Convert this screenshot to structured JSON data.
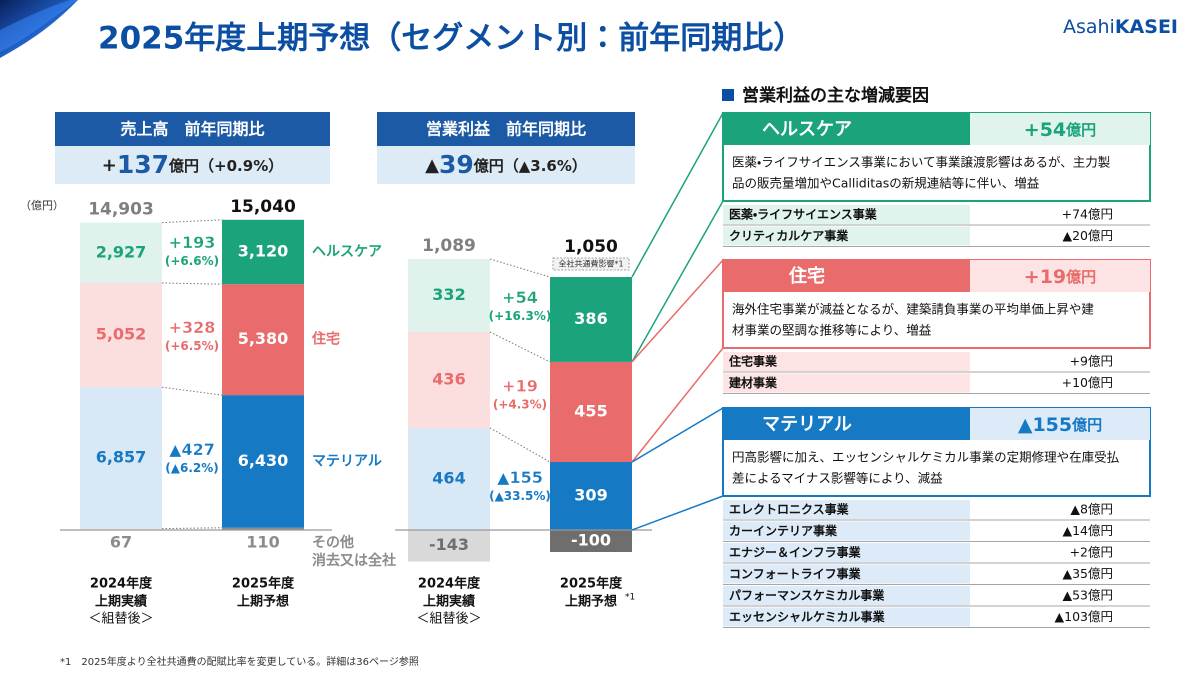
{
  "header": {
    "title": "2025年度上期予想（セグメント別：前年同期比）",
    "logo": {
      "a": "Asahi",
      "b": "KASEI"
    }
  },
  "chart_data": [
    {
      "type": "stacked_bar",
      "title": "売上高　前年同期比",
      "summary": {
        "sign": "+",
        "amount": "137",
        "rest": "億円（+0.9%）"
      },
      "unit": "（億円）",
      "categories": [
        "2024年度",
        "2025年度"
      ],
      "category_notes": [
        [
          "上期実績",
          "＜組替後＞"
        ],
        [
          "上期予想"
        ]
      ],
      "ylim": [
        -1500,
        16000
      ],
      "total_labels": [
        "14,903",
        "15,040"
      ],
      "series": [
        {
          "name": "その他",
          "name_note": "消去又は全社",
          "color": "#8c8c8c",
          "light_color": "#e6e6e6",
          "values": [
            67,
            110
          ],
          "value_labels": [
            "67",
            "110"
          ]
        },
        {
          "name": "マテリアル",
          "color": "#1679c4",
          "light_color": "#d8e8f5",
          "values": [
            6857,
            6430
          ],
          "value_labels": [
            "6,857",
            "6,430"
          ],
          "change": "▲427",
          "change_pct": "(▲6.2%)"
        },
        {
          "name": "住宅",
          "color": "#e96b6b",
          "light_color": "#fbdede",
          "values": [
            5052,
            5380
          ],
          "value_labels": [
            "5,052",
            "5,380"
          ],
          "change": "+328",
          "change_pct": "(+6.5%)"
        },
        {
          "name": "ヘルスケア",
          "color": "#1ba37b",
          "light_color": "#dff2eb",
          "values": [
            2927,
            3120
          ],
          "value_labels": [
            "2,927",
            "3,120"
          ],
          "change": "+193",
          "change_pct": "(+6.6%)"
        }
      ]
    },
    {
      "type": "stacked_bar",
      "title": "営業利益　前年同期比",
      "summary": {
        "sign": "▲",
        "amount": "39",
        "rest": "億円（▲3.6%）"
      },
      "categories": [
        "2024年度",
        "2025年度"
      ],
      "category_notes": [
        [
          "上期実績",
          "＜組替後＞"
        ],
        [
          "上期予想"
        ]
      ],
      "forecast_mark": "*1",
      "note": "全社共通費影響*1",
      "ylim": [
        -150,
        1500
      ],
      "total_labels": [
        "1,089",
        "1,050"
      ],
      "series": [
        {
          "color": "#6e6e6e",
          "light_color": "#d9d9d9",
          "values": [
            -143,
            -100
          ]
        },
        {
          "color": "#1679c4",
          "light_color": "#d8e8f5",
          "values": [
            464,
            309
          ],
          "change": "▲155",
          "change_pct": "(▲33.5%)"
        },
        {
          "color": "#e96b6b",
          "light_color": "#fbdede",
          "values": [
            436,
            455
          ],
          "change": "+19",
          "change_pct": "(+4.3%)"
        },
        {
          "color": "#1ba37b",
          "light_color": "#dff2eb",
          "values": [
            332,
            386
          ],
          "change": "+54",
          "change_pct": "(+16.3%)"
        }
      ]
    }
  ],
  "factors": {
    "heading": "営業利益の主な増減要因",
    "sections": [
      {
        "name": "ヘルスケア",
        "change": {
          "amount": "+54",
          "unit": "億円"
        },
        "color": "#1ba37b",
        "light_color": "#e0f3ec",
        "lines": [
          "医薬・ライフサイエンス事業において事業譲渡影響はあるが、主力製",
          "品の販売量増加やCalliditasの新規連結等に伴い、増益"
        ],
        "items": [
          [
            "医薬・ライフサイエンス事業",
            "+74億円"
          ],
          [
            "クリティカルケア事業",
            "▲20億円"
          ]
        ]
      },
      {
        "name": "住宅",
        "change": {
          "amount": "+19",
          "unit": "億円"
        },
        "color": "#e96b6b",
        "light_color": "#fde3e3",
        "lines": [
          "海外住宅事業が減益となるが、建築請負事業の平均単価上昇や建",
          "材事業の堅調な推移等により、増益"
        ],
        "items": [
          [
            "住宅事業",
            "+9億円"
          ],
          [
            "建材事業",
            "+10億円"
          ]
        ]
      },
      {
        "name": "マテリアル",
        "change": {
          "amount": "▲155",
          "unit": "億円"
        },
        "color": "#1679c4",
        "light_color": "#dcebf7",
        "lines": [
          "円高影響に加え、エッセンシャルケミカル事業の定期修理や在庫受払",
          "差によるマイナス影響等により、減益"
        ],
        "items": [
          [
            "エレクトロニクス事業",
            "▲8億円"
          ],
          [
            "カーインテリア事業",
            "▲14億円"
          ],
          [
            "エナジー＆インフラ事業",
            "+2億円"
          ],
          [
            "コンフォートライフ事業",
            "▲35億円"
          ],
          [
            "パフォーマンスケミカル事業",
            "▲53億円"
          ],
          [
            "エッセンシャルケミカル事業",
            "▲103億円"
          ]
        ]
      }
    ]
  },
  "footnote": "*1　2025年度より全社共通費の配賦比率を変更している。詳細は36ページ参照"
}
